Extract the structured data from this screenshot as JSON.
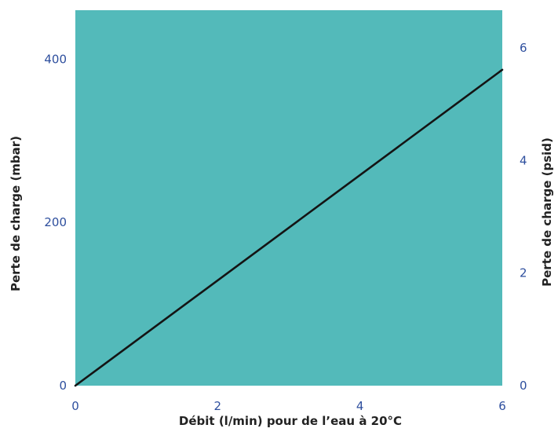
{
  "chart_data": {
    "type": "line",
    "title": "",
    "xlabel": "Débit (l/min) pour de l’eau à 20°C",
    "ylabel": "Perte de charge (mbar)",
    "y2label": "Perte de charge (psid)",
    "xlim": [
      0,
      6
    ],
    "ylim": [
      0,
      460
    ],
    "y2lim": [
      0,
      6.67
    ],
    "xticks": [
      0,
      2,
      4,
      6
    ],
    "yticks": [
      0,
      200,
      400
    ],
    "y2ticks": [
      0,
      2,
      4,
      6
    ],
    "grid": false,
    "series": [
      {
        "x": [
          0,
          6
        ],
        "y": [
          0,
          387
        ]
      }
    ]
  },
  "colors": {
    "plot_background": "#53BABA",
    "line": "#141414",
    "tick_labels": "#2E4F9E",
    "axis_titles": "#222222"
  }
}
